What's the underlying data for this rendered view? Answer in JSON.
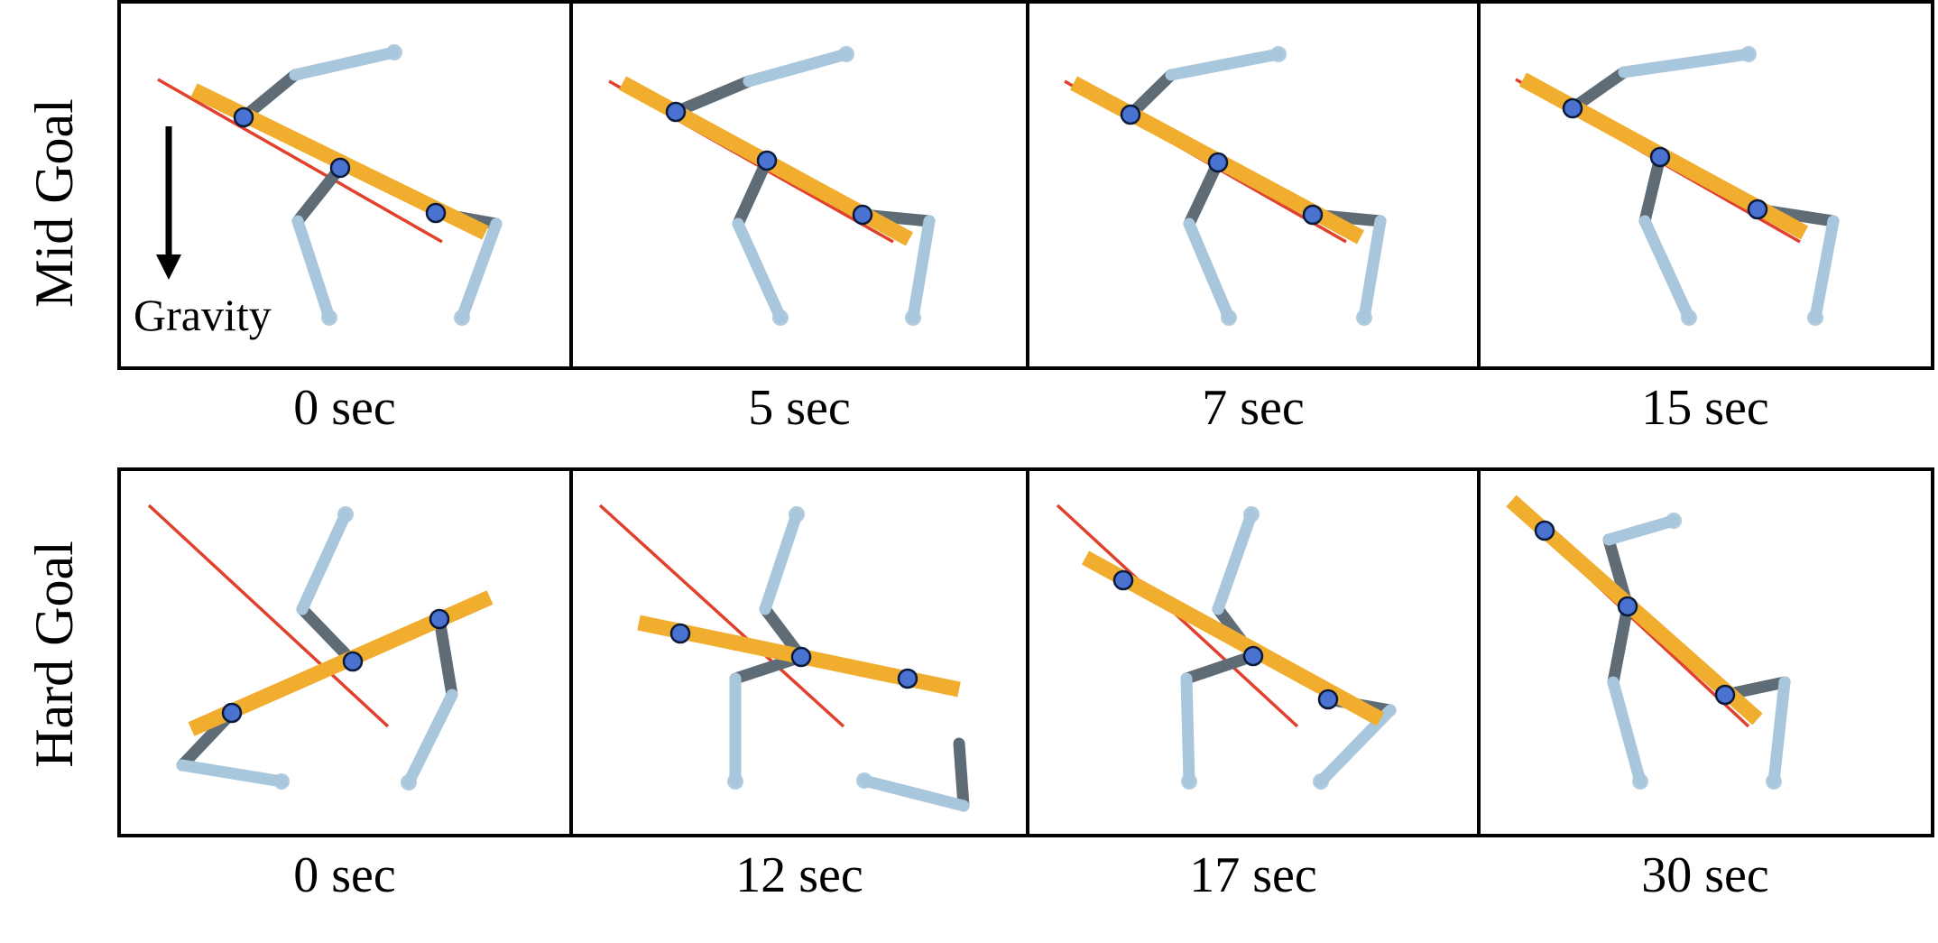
{
  "colors": {
    "limb_light": "#a8c6dc",
    "limb_dark": "#5f6b75",
    "body_bar": "#f0ad2e",
    "goal_line": "#e0402c",
    "marker_fill": "#4a72d0",
    "marker_stroke": "#0a1a3a",
    "frame": "#000000"
  },
  "annotation": {
    "gravity_label": "Gravity",
    "arrow_icon": "arrow-down-icon"
  },
  "rows": [
    {
      "label": "Mid Goal",
      "frames": [
        {
          "time": "0 sec"
        },
        {
          "time": "5 sec"
        },
        {
          "time": "7 sec"
        },
        {
          "time": "15 sec"
        }
      ]
    },
    {
      "label": "Hard Goal",
      "frames": [
        {
          "time": "0 sec"
        },
        {
          "time": "12 sec"
        },
        {
          "time": "17 sec"
        },
        {
          "time": "30 sec"
        }
      ]
    }
  ]
}
